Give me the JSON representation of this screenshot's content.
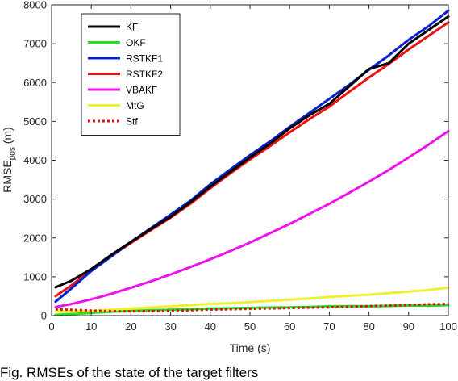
{
  "chart_data": {
    "type": "line",
    "xlabel": "Time (s)",
    "ylabel": "RMSE",
    "ylabel_subscript": "pos",
    "ylabel_unit": " (m)",
    "xlim": [
      0,
      100
    ],
    "ylim": [
      0,
      8000
    ],
    "xticks": [
      0,
      10,
      20,
      30,
      40,
      50,
      60,
      70,
      80,
      90,
      100
    ],
    "yticks": [
      0,
      1000,
      2000,
      3000,
      4000,
      5000,
      6000,
      7000,
      8000
    ],
    "grid": false,
    "legend_position": "top-left",
    "x": [
      1,
      5,
      10,
      15,
      20,
      25,
      30,
      35,
      40,
      45,
      50,
      55,
      60,
      65,
      70,
      75,
      80,
      85,
      90,
      95,
      100
    ],
    "series": [
      {
        "name": "KF",
        "color": "#000000",
        "style": "solid",
        "values": [
          730,
          900,
          1200,
          1560,
          1900,
          2230,
          2550,
          2920,
          3320,
          3700,
          4070,
          4420,
          4820,
          5160,
          5450,
          5900,
          6350,
          6500,
          7000,
          7350,
          7700
        ]
      },
      {
        "name": "OKF",
        "color": "#22e022",
        "style": "solid",
        "values": [
          20,
          40,
          70,
          100,
          120,
          140,
          150,
          165,
          180,
          190,
          200,
          210,
          215,
          225,
          240,
          245,
          240,
          250,
          260,
          255,
          270
        ]
      },
      {
        "name": "RSTKF1",
        "color": "#0b1fd0",
        "style": "solid",
        "values": [
          360,
          700,
          1150,
          1520,
          1900,
          2250,
          2600,
          2960,
          3380,
          3760,
          4130,
          4480,
          4860,
          5220,
          5580,
          5940,
          6330,
          6700,
          7100,
          7450,
          7850
        ]
      },
      {
        "name": "RSTKF2",
        "color": "#ee1111",
        "style": "solid",
        "values": [
          500,
          780,
          1180,
          1530,
          1870,
          2200,
          2520,
          2880,
          3280,
          3660,
          4020,
          4360,
          4720,
          5060,
          5380,
          5760,
          6130,
          6480,
          6850,
          7200,
          7550
        ]
      },
      {
        "name": "VBAKF",
        "color": "#ee11ee",
        "style": "solid",
        "values": [
          220,
          300,
          420,
          560,
          720,
          880,
          1060,
          1250,
          1450,
          1660,
          1880,
          2120,
          2360,
          2620,
          2880,
          3160,
          3450,
          3750,
          4070,
          4400,
          4750
        ]
      },
      {
        "name": "MtG",
        "color": "#f0f030",
        "style": "solid",
        "values": [
          100,
          110,
          120,
          150,
          180,
          210,
          240,
          270,
          300,
          320,
          350,
          380,
          410,
          440,
          480,
          510,
          540,
          580,
          620,
          660,
          720
        ]
      },
      {
        "name": "Stf",
        "color": "#dd1111",
        "style": "dotted",
        "values": [
          160,
          150,
          130,
          115,
          110,
          115,
          125,
          140,
          155,
          165,
          175,
          185,
          195,
          205,
          215,
          230,
          245,
          260,
          275,
          290,
          300
        ]
      }
    ]
  },
  "caption": "Fig. RMSEs of the state of the target filters"
}
